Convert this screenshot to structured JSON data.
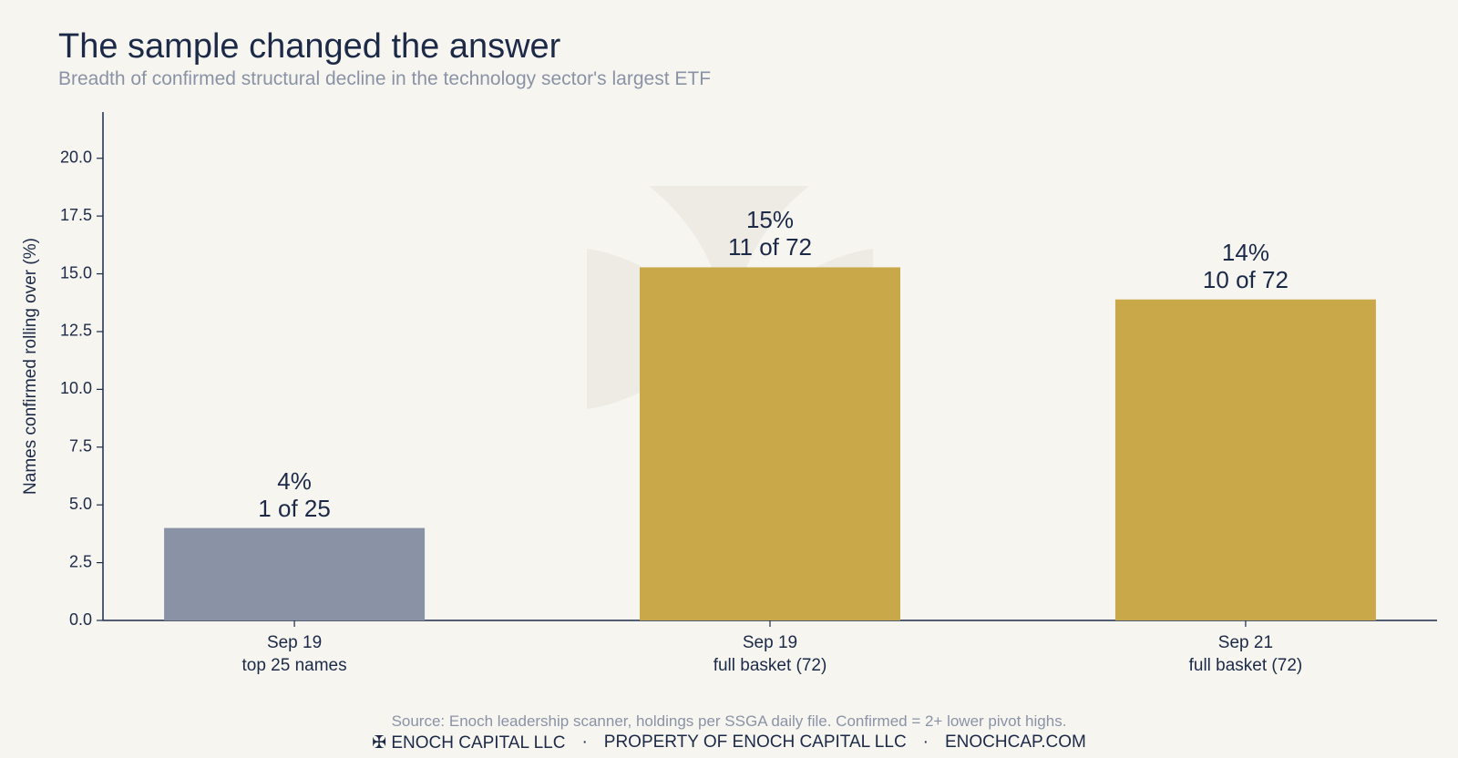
{
  "chart_data": {
    "type": "bar",
    "title": "The sample changed the answer",
    "subtitle": "Breadth of confirmed structural decline in the technology sector's largest ETF",
    "y_label": "Names confirmed rolling over (%)",
    "categories": [
      "Sep 19\ntop 25 names",
      "Sep 19\nfull basket (72)",
      "Sep 21\nfull basket (72)"
    ],
    "values": [
      4.0,
      15.28,
      13.89
    ],
    "value_labels": [
      "4%\n1 of 25",
      "15%\n11 of 72",
      "14%\n10 of 72"
    ],
    "colors": [
      "#8a93a6",
      "#c9a84a",
      "#c9a84a"
    ],
    "ylim": [
      0,
      22
    ],
    "yticks": [
      {
        "value": 0,
        "label": "0.0"
      },
      {
        "value": 2.5,
        "label": "2.5"
      },
      {
        "value": 5,
        "label": "5.0"
      },
      {
        "value": 7.5,
        "label": "7.5"
      },
      {
        "value": 10,
        "label": "10.0"
      },
      {
        "value": 12.5,
        "label": "12.5"
      },
      {
        "value": 15,
        "label": "15.0"
      },
      {
        "value": 17.5,
        "label": "17.5"
      },
      {
        "value": 20,
        "label": "20.0"
      }
    ],
    "grid": false,
    "source": "Source: Enoch leadership scanner, holdings per SSGA daily file. Confirmed = 2+ lower pivot highs.",
    "footer": [
      "✠  ENOCH CAPITAL LLC",
      "PROPERTY OF ENOCH CAPITAL LLC",
      "ENOCHCAP.COM"
    ]
  }
}
